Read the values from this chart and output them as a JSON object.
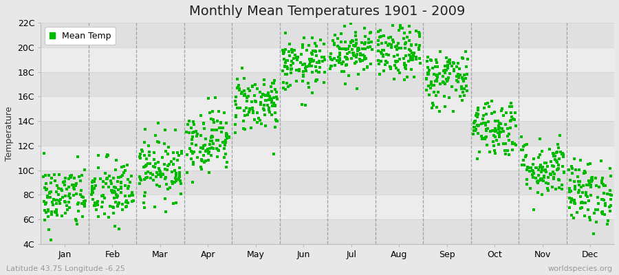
{
  "title": "Monthly Mean Temperatures 1901 - 2009",
  "ylabel": "Temperature",
  "subtitle": "Latitude 43.75 Longitude -6.25",
  "watermark": "worldspecies.org",
  "legend_label": "Mean Temp",
  "dot_color": "#00bb00",
  "background_color": "#e8e8e8",
  "plot_bg_light": "#ececec",
  "plot_bg_dark": "#e0e0e0",
  "ylim": [
    4,
    22
  ],
  "yticks": [
    4,
    6,
    8,
    10,
    12,
    14,
    16,
    18,
    20,
    22
  ],
  "ytick_labels": [
    "4C",
    "6C",
    "8C",
    "10C",
    "12C",
    "14C",
    "16C",
    "18C",
    "20C",
    "22C"
  ],
  "months": [
    "Jan",
    "Feb",
    "Mar",
    "Apr",
    "May",
    "Jun",
    "Jul",
    "Aug",
    "Sep",
    "Oct",
    "Nov",
    "Dec"
  ],
  "month_means": [
    7.8,
    8.2,
    10.2,
    12.5,
    15.5,
    18.5,
    19.8,
    19.5,
    17.5,
    13.5,
    10.2,
    8.2
  ],
  "month_stds": [
    1.3,
    1.4,
    1.3,
    1.3,
    1.2,
    1.1,
    1.1,
    1.1,
    1.2,
    1.2,
    1.2,
    1.3
  ],
  "n_years": 109,
  "seed": 42,
  "marker_size": 3,
  "dot_alpha": 1.0,
  "vline_color": "#999999",
  "hline_color": "#cccccc",
  "title_fontsize": 14,
  "axis_label_fontsize": 9,
  "tick_fontsize": 9,
  "subtitle_fontsize": 8,
  "watermark_fontsize": 8
}
